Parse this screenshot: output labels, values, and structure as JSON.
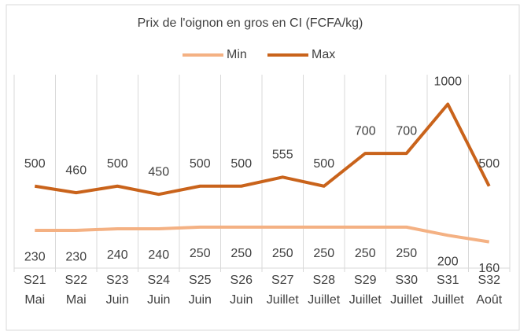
{
  "chart_data": {
    "type": "line",
    "title": "Prix de l'oignon en gros en CI (FCFA/kg)",
    "categories": [
      [
        "S21",
        "Mai"
      ],
      [
        "S22",
        "Mai"
      ],
      [
        "S23",
        "Juin"
      ],
      [
        "S24",
        "Juin"
      ],
      [
        "S25",
        "Juin"
      ],
      [
        "S26",
        "Juin"
      ],
      [
        "S27",
        "Juillet"
      ],
      [
        "S28",
        "Juillet"
      ],
      [
        "S29",
        "Juillet"
      ],
      [
        "S30",
        "Juillet"
      ],
      [
        "S31",
        "Juillet"
      ],
      [
        "S32",
        "Août"
      ]
    ],
    "series": [
      {
        "name": "Min",
        "color": "#f4b183",
        "values": [
          230,
          230,
          240,
          240,
          250,
          250,
          250,
          250,
          250,
          250,
          200,
          160
        ]
      },
      {
        "name": "Max",
        "color": "#c9631b",
        "values": [
          500,
          460,
          500,
          450,
          500,
          500,
          555,
          500,
          700,
          700,
          1000,
          500
        ]
      }
    ],
    "ylim": [
      0,
      1180
    ]
  }
}
